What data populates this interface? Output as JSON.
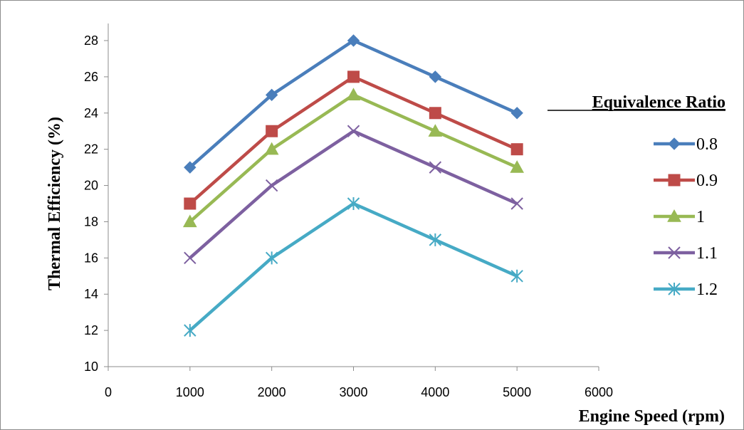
{
  "chart_data": {
    "type": "line",
    "title": "",
    "xlabel": "Engine Speed (rpm)",
    "ylabel": "Thermal Efficiency (%)",
    "x": [
      1000,
      2000,
      3000,
      4000,
      5000
    ],
    "xlim": [
      0,
      6000
    ],
    "ylim": [
      10,
      28
    ],
    "x_ticks": [
      0,
      1000,
      2000,
      3000,
      4000,
      5000,
      6000
    ],
    "y_ticks": [
      10,
      12,
      14,
      16,
      18,
      20,
      22,
      24,
      26,
      28
    ],
    "grid": false,
    "legend": {
      "title": "Equivalence Ratio",
      "placement": "right"
    },
    "series": [
      {
        "name": "0.8",
        "values": [
          21,
          25,
          28,
          26,
          24
        ],
        "color": "#4a7ebb",
        "marker": "diamond"
      },
      {
        "name": "0.9",
        "values": [
          19,
          23,
          26,
          24,
          22
        ],
        "color": "#be4b48",
        "marker": "square"
      },
      {
        "name": "1",
        "values": [
          18,
          22,
          25,
          23,
          21
        ],
        "color": "#98b954",
        "marker": "triangle"
      },
      {
        "name": "1.1",
        "values": [
          16,
          20,
          23,
          21,
          19
        ],
        "color": "#7d60a0",
        "marker": "x"
      },
      {
        "name": "1.2",
        "values": [
          12,
          16,
          19,
          17,
          15
        ],
        "color": "#46aac5",
        "marker": "star"
      }
    ]
  }
}
